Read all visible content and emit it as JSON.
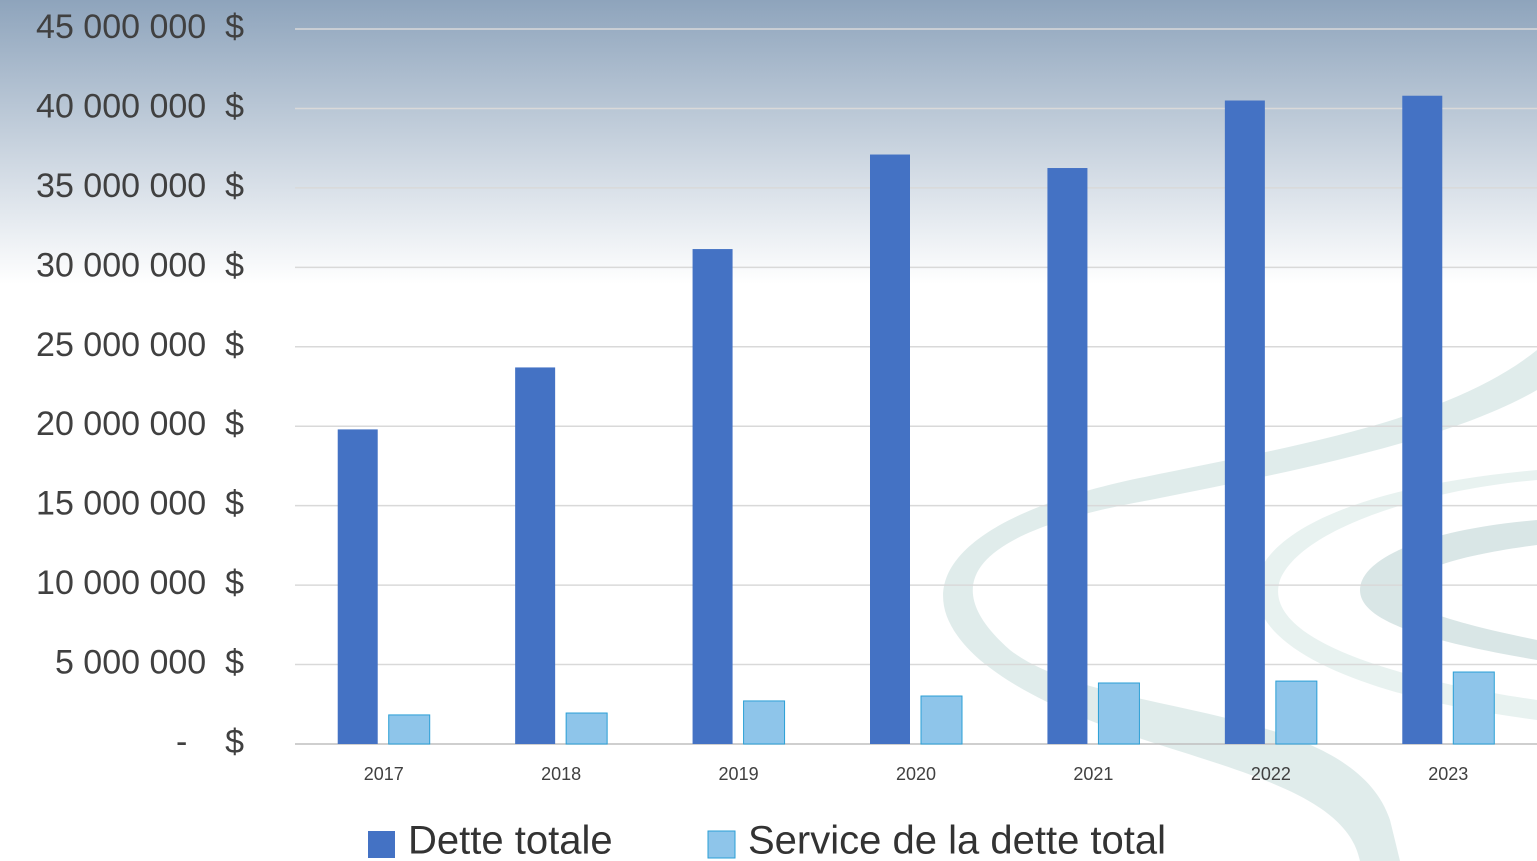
{
  "chart_data": {
    "type": "bar",
    "categories": [
      "2017",
      "2018",
      "2019",
      "2020",
      "2021",
      "2022",
      "2023"
    ],
    "series": [
      {
        "name": "Dette totale",
        "color": "#4472c4",
        "values": [
          19800000,
          23700000,
          31150000,
          37100000,
          36250000,
          40500000,
          40800000
        ]
      },
      {
        "name": "Service de la dette total",
        "color": "#8ec5ea",
        "values": [
          1830000,
          1950000,
          2710000,
          3020000,
          3840000,
          3960000,
          4530000
        ]
      }
    ],
    "ylim": [
      0,
      45000000
    ],
    "yticks": [
      {
        "value": 0,
        "label": "-    $"
      },
      {
        "value": 5000000,
        "label": "5 000 000  $"
      },
      {
        "value": 10000000,
        "label": "10 000 000  $"
      },
      {
        "value": 15000000,
        "label": "15 000 000  $"
      },
      {
        "value": 20000000,
        "label": "20 000 000  $"
      },
      {
        "value": 25000000,
        "label": "25 000 000  $"
      },
      {
        "value": 30000000,
        "label": "30 000 000  $"
      },
      {
        "value": 35000000,
        "label": "35 000 000  $"
      },
      {
        "value": 40000000,
        "label": "40 000 000  $"
      },
      {
        "value": 45000000,
        "label": "45 000 000  $"
      }
    ],
    "grid": true,
    "legend": "bottom"
  }
}
